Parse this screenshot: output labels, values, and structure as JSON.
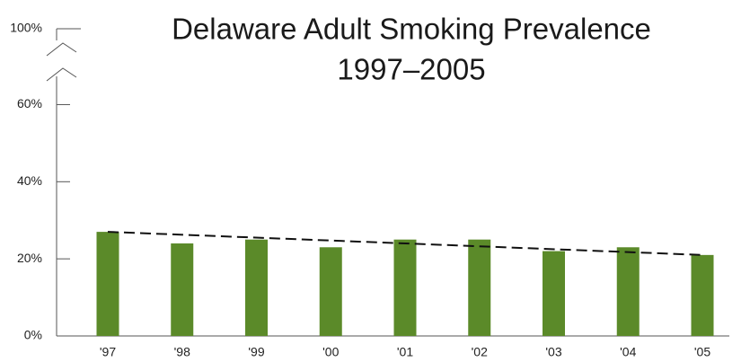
{
  "chart_data": {
    "type": "bar",
    "title": "Delaware Adult Smoking Prevalence",
    "subtitle": "1997–2005",
    "categories": [
      "'97",
      "'98",
      "'99",
      "'00",
      "'01",
      "'02",
      "'03",
      "'04",
      "'05"
    ],
    "values": [
      27,
      24,
      25,
      23,
      25,
      25,
      22,
      23,
      21
    ],
    "color": "#5b8a29",
    "trend": [
      27,
      21
    ],
    "ylim": [
      0,
      65
    ],
    "axis_break": true,
    "yticks": [
      {
        "value": 0,
        "label": "0%"
      },
      {
        "value": 20,
        "label": "20%"
      },
      {
        "value": 40,
        "label": "40%"
      },
      {
        "value": 60,
        "label": "60%"
      },
      {
        "value": 100,
        "label": "100%"
      }
    ],
    "grid": false
  }
}
